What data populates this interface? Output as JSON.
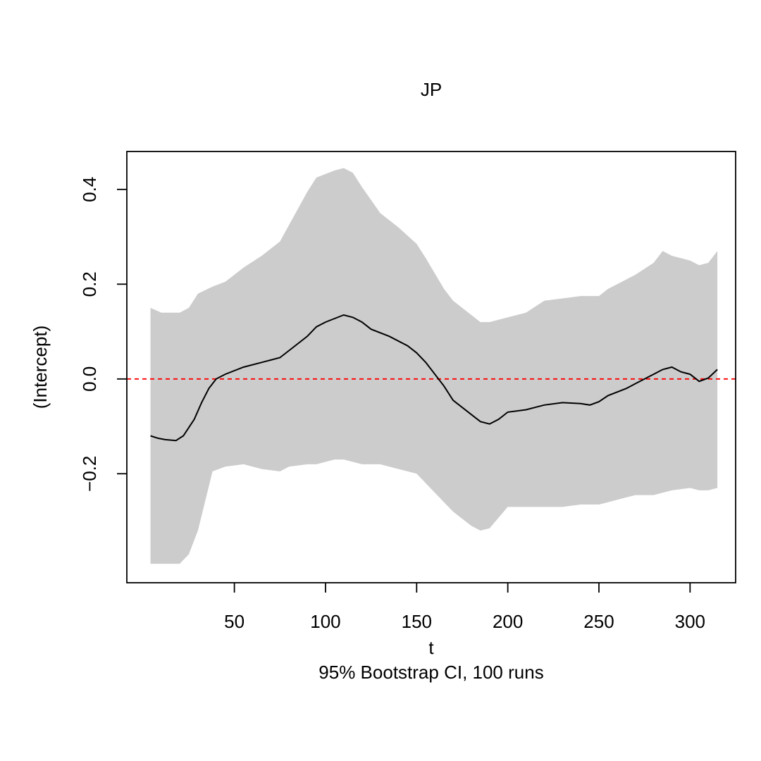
{
  "chart_data": {
    "type": "line",
    "title": "JP",
    "xlabel": "t",
    "subtitle": "95% Bootstrap CI, 100 runs",
    "ylabel": "(Intercept)",
    "xlim": [
      -9,
      325
    ],
    "ylim": [
      -0.43,
      0.48
    ],
    "x_ticks": [
      50,
      100,
      150,
      200,
      250,
      300
    ],
    "y_ticks": [
      -0.2,
      0.0,
      0.2,
      0.4
    ],
    "y_tick_labels": [
      "−0.2",
      "0.0",
      "0.2",
      "0.4"
    ],
    "reference_line": {
      "y": 0.0,
      "color": "#ff0000",
      "style": "dashed"
    },
    "ci_band": {
      "color": "#cccccc",
      "x": [
        4,
        10,
        20,
        25,
        30,
        38,
        45,
        55,
        65,
        75,
        80,
        90,
        95,
        105,
        110,
        115,
        120,
        130,
        140,
        150,
        155,
        165,
        170,
        180,
        185,
        190,
        200,
        210,
        220,
        230,
        240,
        250,
        255,
        265,
        270,
        280,
        285,
        290,
        300,
        305,
        310,
        315
      ],
      "upper": [
        0.15,
        0.14,
        0.14,
        0.15,
        0.18,
        0.195,
        0.205,
        0.235,
        0.26,
        0.29,
        0.325,
        0.395,
        0.425,
        0.44,
        0.445,
        0.435,
        0.405,
        0.35,
        0.32,
        0.285,
        0.255,
        0.19,
        0.165,
        0.135,
        0.12,
        0.12,
        0.13,
        0.14,
        0.165,
        0.17,
        0.175,
        0.175,
        0.19,
        0.21,
        0.22,
        0.245,
        0.27,
        0.26,
        0.25,
        0.24,
        0.245,
        0.27
      ],
      "lower": [
        -0.39,
        -0.39,
        -0.39,
        -0.37,
        -0.32,
        -0.195,
        -0.185,
        -0.18,
        -0.19,
        -0.195,
        -0.185,
        -0.18,
        -0.18,
        -0.17,
        -0.17,
        -0.175,
        -0.18,
        -0.18,
        -0.19,
        -0.2,
        -0.22,
        -0.26,
        -0.28,
        -0.31,
        -0.32,
        -0.315,
        -0.27,
        -0.27,
        -0.27,
        -0.27,
        -0.265,
        -0.265,
        -0.26,
        -0.25,
        -0.245,
        -0.245,
        -0.24,
        -0.235,
        -0.23,
        -0.235,
        -0.235,
        -0.23
      ]
    },
    "series": [
      {
        "color": "#000000",
        "x": [
          4,
          8,
          12,
          18,
          22,
          28,
          32,
          36,
          40,
          45,
          55,
          65,
          75,
          80,
          90,
          95,
          100,
          110,
          115,
          120,
          125,
          135,
          145,
          150,
          155,
          165,
          170,
          180,
          185,
          190,
          195,
          200,
          210,
          220,
          230,
          240,
          245,
          250,
          255,
          265,
          270,
          280,
          285,
          290,
          295,
          300,
          305,
          310,
          315
        ],
        "y": [
          -0.12,
          -0.125,
          -0.128,
          -0.13,
          -0.12,
          -0.085,
          -0.05,
          -0.02,
          0.0,
          0.01,
          0.025,
          0.035,
          0.045,
          0.06,
          0.09,
          0.11,
          0.12,
          0.135,
          0.13,
          0.12,
          0.105,
          0.09,
          0.07,
          0.055,
          0.035,
          -0.015,
          -0.045,
          -0.075,
          -0.09,
          -0.095,
          -0.085,
          -0.07,
          -0.065,
          -0.055,
          -0.05,
          -0.052,
          -0.055,
          -0.048,
          -0.035,
          -0.02,
          -0.01,
          0.01,
          0.02,
          0.025,
          0.015,
          0.01,
          -0.005,
          0.002,
          0.02
        ]
      }
    ]
  }
}
